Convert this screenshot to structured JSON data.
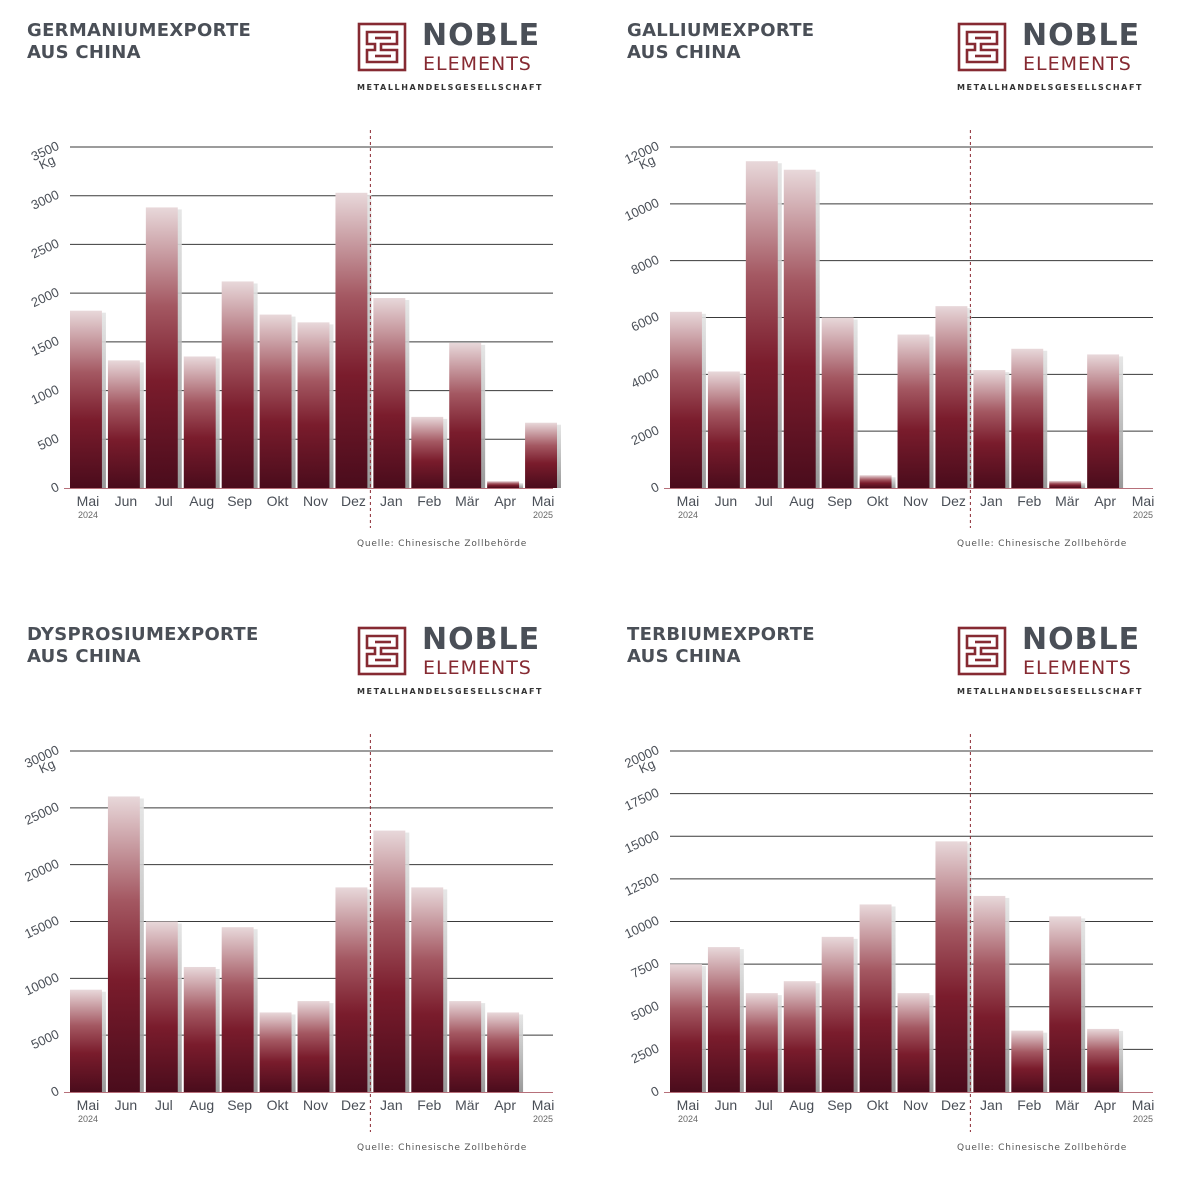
{
  "brand": {
    "name_top": "NOBLE",
    "name_bottom": "ELEMENTS",
    "subtitle": "METALLHANDELSGESELLSCHAFT",
    "colors": {
      "text": "#4a4f57",
      "accent": "#862a32"
    }
  },
  "source": "Quelle: Chinesische Zollbehörde",
  "chart_data": [
    {
      "type": "bar",
      "title_line1": "GERMANIUMEXPORTE",
      "title_line2": "AUS CHINA",
      "unit": "Kg",
      "categories": [
        "Mai",
        "Jun",
        "Jul",
        "Aug",
        "Sep",
        "Okt",
        "Nov",
        "Dez",
        "Jan",
        "Feb",
        "Mär",
        "Apr",
        "Mai"
      ],
      "year_labels": {
        "0": "2024",
        "12": "2025"
      },
      "values": [
        1820,
        1310,
        2880,
        1350,
        2120,
        1780,
        1700,
        3030,
        1950,
        730,
        1490,
        70,
        670
      ],
      "ylim": [
        0,
        3500
      ],
      "yticks": [
        0,
        500,
        1000,
        1500,
        2000,
        2500,
        3000,
        3500
      ],
      "divider_after_index": 7
    },
    {
      "type": "bar",
      "title_line1": "GALLIUMEXPORTE",
      "title_line2": "AUS CHINA",
      "unit": "Kg",
      "categories": [
        "Mai",
        "Jun",
        "Jul",
        "Aug",
        "Sep",
        "Okt",
        "Nov",
        "Dez",
        "Jan",
        "Feb",
        "Mär",
        "Apr",
        "Mai"
      ],
      "year_labels": {
        "0": "2024",
        "12": "2025"
      },
      "values": [
        6200,
        4100,
        11500,
        11200,
        6000,
        450,
        5400,
        6400,
        4150,
        4900,
        250,
        4700,
        null
      ],
      "ylim": [
        0,
        12000
      ],
      "yticks": [
        0,
        2000,
        4000,
        6000,
        8000,
        10000,
        12000
      ],
      "divider_after_index": 7
    },
    {
      "type": "bar",
      "title_line1": "DYSPROSIUMEXPORTE",
      "title_line2": "AUS CHINA",
      "unit": "Kg",
      "categories": [
        "Mai",
        "Jun",
        "Jul",
        "Aug",
        "Sep",
        "Okt",
        "Nov",
        "Dez",
        "Jan",
        "Feb",
        "Mär",
        "Apr",
        "Mai"
      ],
      "year_labels": {
        "0": "2024",
        "12": "2025"
      },
      "values": [
        9000,
        26000,
        15000,
        11000,
        14500,
        7000,
        8000,
        18000,
        23000,
        18000,
        8000,
        7000,
        null
      ],
      "ylim": [
        0,
        30000
      ],
      "yticks": [
        0,
        5000,
        10000,
        15000,
        20000,
        25000,
        30000
      ],
      "divider_after_index": 7
    },
    {
      "type": "bar",
      "title_line1": "TERBIUMEXPORTE",
      "title_line2": "AUS CHINA",
      "unit": "Kg",
      "categories": [
        "Mai",
        "Jun",
        "Jul",
        "Aug",
        "Sep",
        "Okt",
        "Nov",
        "Dez",
        "Jan",
        "Feb",
        "Mär",
        "Apr",
        "Mai"
      ],
      "year_labels": {
        "0": "2024",
        "12": "2025"
      },
      "values": [
        7500,
        8500,
        5800,
        6500,
        9100,
        11000,
        5800,
        14700,
        11500,
        3600,
        10300,
        3700,
        null
      ],
      "ylim": [
        0,
        20000
      ],
      "yticks": [
        0,
        2500,
        5000,
        7500,
        10000,
        12500,
        15000,
        17500,
        20000
      ],
      "divider_after_index": 7
    }
  ]
}
